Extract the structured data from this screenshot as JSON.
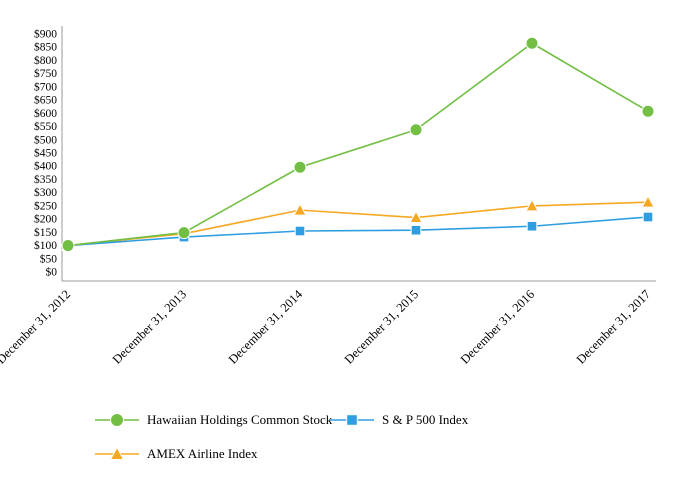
{
  "chart_data": {
    "type": "line",
    "title": "",
    "xlabel": "",
    "ylabel": "",
    "grid": false,
    "legend_position": "bottom",
    "categories": [
      "December 31, 2012",
      "December 31, 2013",
      "December 31, 2014",
      "December 31, 2015",
      "December 31, 2016",
      "December 31, 2017"
    ],
    "y_axis": {
      "min": 0,
      "max": 900,
      "step": 50,
      "prefix": "$"
    },
    "series": [
      {
        "name": "Hawaiian Holdings Common Stock",
        "marker": "circle",
        "color": "#72bf44",
        "values": [
          100,
          149,
          396,
          538,
          865,
          608
        ]
      },
      {
        "name": "S & P 500 Index",
        "marker": "square",
        "color": "#2f9ee0",
        "values": [
          100,
          132,
          155,
          158,
          173,
          208
        ]
      },
      {
        "name": "AMEX Airline Index",
        "marker": "triangle",
        "color": "#f7a823",
        "values": [
          100,
          145,
          234,
          206,
          250,
          264
        ]
      }
    ],
    "axis_color": "#9b9b9b"
  }
}
